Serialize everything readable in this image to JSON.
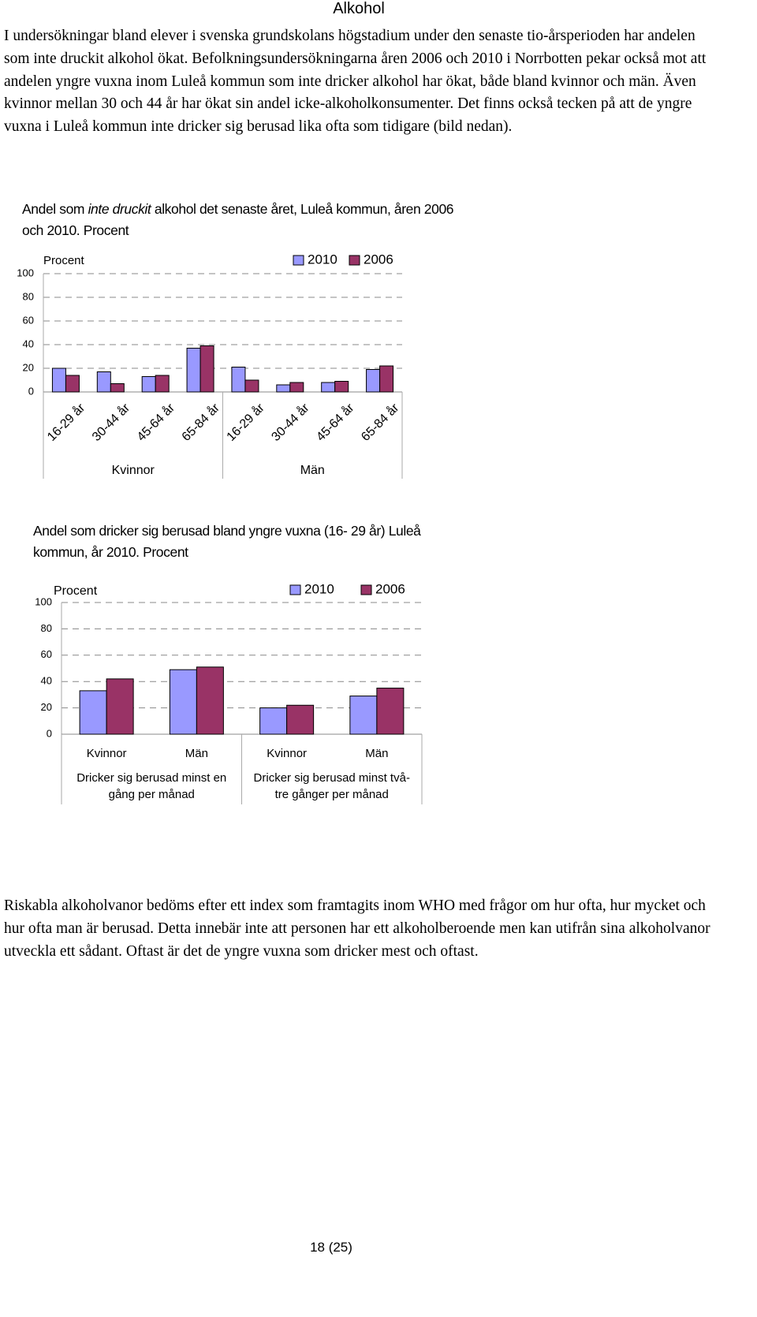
{
  "heading": "Alkohol",
  "paragraphs": [
    "I undersökningar bland elever i svenska grundskolans högstadium under den senaste tio-årsperioden har andelen som inte druckit alkohol ökat. Befolkningsundersökningarna åren 2006 och 2010 i Norrbotten pekar också mot att andelen yngre vuxna inom Luleå kommun som inte dricker alkohol har ökat, både bland kvinnor och män. Även kvinnor mellan 30 och 44 år har ökat sin andel icke-alkoholkonsumenter. Det finns också tecken på att de yngre vuxna i Luleå kommun inte dricker sig berusad lika ofta som tidigare (bild nedan).",
    "Riskabla alkoholvanor bedöms efter ett index som framtagits inom WHO med frågor om hur ofta, hur mycket och hur ofta man är berusad. Detta innebär inte att personen har ett alkoholberoende men kan utifrån sina alkoholvanor utveckla ett sådant. Oftast är det de yngre vuxna som dricker mest och oftast."
  ],
  "chart_data": [
    {
      "type": "bar",
      "title": [
        "Andel som",
        "inte druckit",
        "alkohol det senaste året, Luleå kommun, åren 2006 och 2010. Procent"
      ],
      "y_label": "Procent",
      "categories": [
        "16-29 år",
        "30-44 år",
        "45-64 år",
        "65-84 år",
        "16-29 år",
        "30-44 år",
        "45-64 år",
        "65-84 år"
      ],
      "groups": [
        "Kvinnor",
        "Män"
      ],
      "series": [
        {
          "name": "2010",
          "color": "#9999ff",
          "values": [
            20,
            17,
            13,
            37,
            21,
            6,
            8,
            19
          ]
        },
        {
          "name": "2006",
          "color": "#993366",
          "values": [
            14,
            7,
            14,
            39,
            10,
            8,
            9,
            22
          ]
        }
      ],
      "ylim": [
        0,
        100
      ],
      "yticks": [
        0,
        20,
        40,
        60,
        80,
        100
      ],
      "grid": true
    },
    {
      "type": "bar",
      "title": [
        "Andel som dricker sig berusad bland yngre vuxna (16- 29 år) Luleå kommun, år 2010. Procent"
      ],
      "y_label": "Procent",
      "categories": [
        "Kvinnor",
        "Män",
        "Kvinnor",
        "Män"
      ],
      "groups": [
        "Dricker sig berusad minst en gång per månad",
        "Dricker sig berusad minst två-tre gånger per månad"
      ],
      "series": [
        {
          "name": "2010",
          "color": "#9999ff",
          "values": [
            33,
            49,
            20,
            29
          ]
        },
        {
          "name": "2006",
          "color": "#993366",
          "values": [
            42,
            51,
            22,
            35
          ]
        }
      ],
      "ylim": [
        0,
        100
      ],
      "yticks": [
        0,
        20,
        40,
        60,
        80,
        100
      ],
      "grid": true
    }
  ],
  "page_number": "18 (25)"
}
